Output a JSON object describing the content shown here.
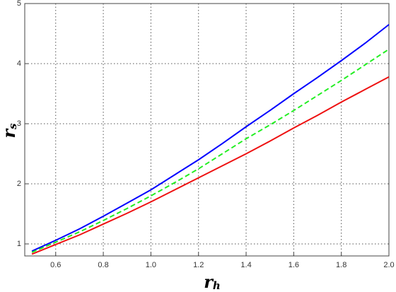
{
  "chart_data": {
    "type": "line",
    "x_label": "r",
    "x_label_sub": "h",
    "y_label": "r",
    "y_label_sub": "s",
    "x": [
      0.5,
      0.6,
      0.7,
      0.8,
      0.9,
      1.0,
      1.1,
      1.2,
      1.3,
      1.4,
      1.5,
      1.6,
      1.7,
      1.8,
      1.9,
      2.0
    ],
    "series": [
      {
        "color": "#0000ff",
        "dashed": false,
        "values": [
          0.88,
          1.06,
          1.25,
          1.46,
          1.68,
          1.9,
          2.15,
          2.4,
          2.67,
          2.95,
          3.22,
          3.5,
          3.77,
          4.05,
          4.34,
          4.65
        ]
      },
      {
        "color": "#22ee22",
        "dashed": true,
        "values": [
          0.86,
          1.03,
          1.2,
          1.39,
          1.59,
          1.8,
          2.02,
          2.25,
          2.5,
          2.75,
          2.98,
          3.22,
          3.47,
          3.72,
          3.98,
          4.24
        ]
      },
      {
        "color": "#ee1111",
        "dashed": false,
        "values": [
          0.83,
          0.99,
          1.15,
          1.33,
          1.51,
          1.7,
          1.9,
          2.1,
          2.3,
          2.5,
          2.71,
          2.93,
          3.14,
          3.36,
          3.57,
          3.78
        ]
      }
    ],
    "xlim": [
      0.47,
      2.0
    ],
    "ylim": [
      0.8,
      5
    ],
    "xticks": [
      {
        "value": 0.6,
        "label": "0.6"
      },
      {
        "value": 0.8,
        "label": "0.8"
      },
      {
        "value": 1.0,
        "label": "1.0"
      },
      {
        "value": 1.2,
        "label": "1.2"
      },
      {
        "value": 1.4,
        "label": "1.4"
      },
      {
        "value": 1.6,
        "label": "1.6"
      },
      {
        "value": 1.8,
        "label": "1.8"
      },
      {
        "value": 2.0,
        "label": "2.0"
      }
    ],
    "yticks": [
      1,
      2,
      3,
      4,
      5
    ],
    "grid": true
  }
}
